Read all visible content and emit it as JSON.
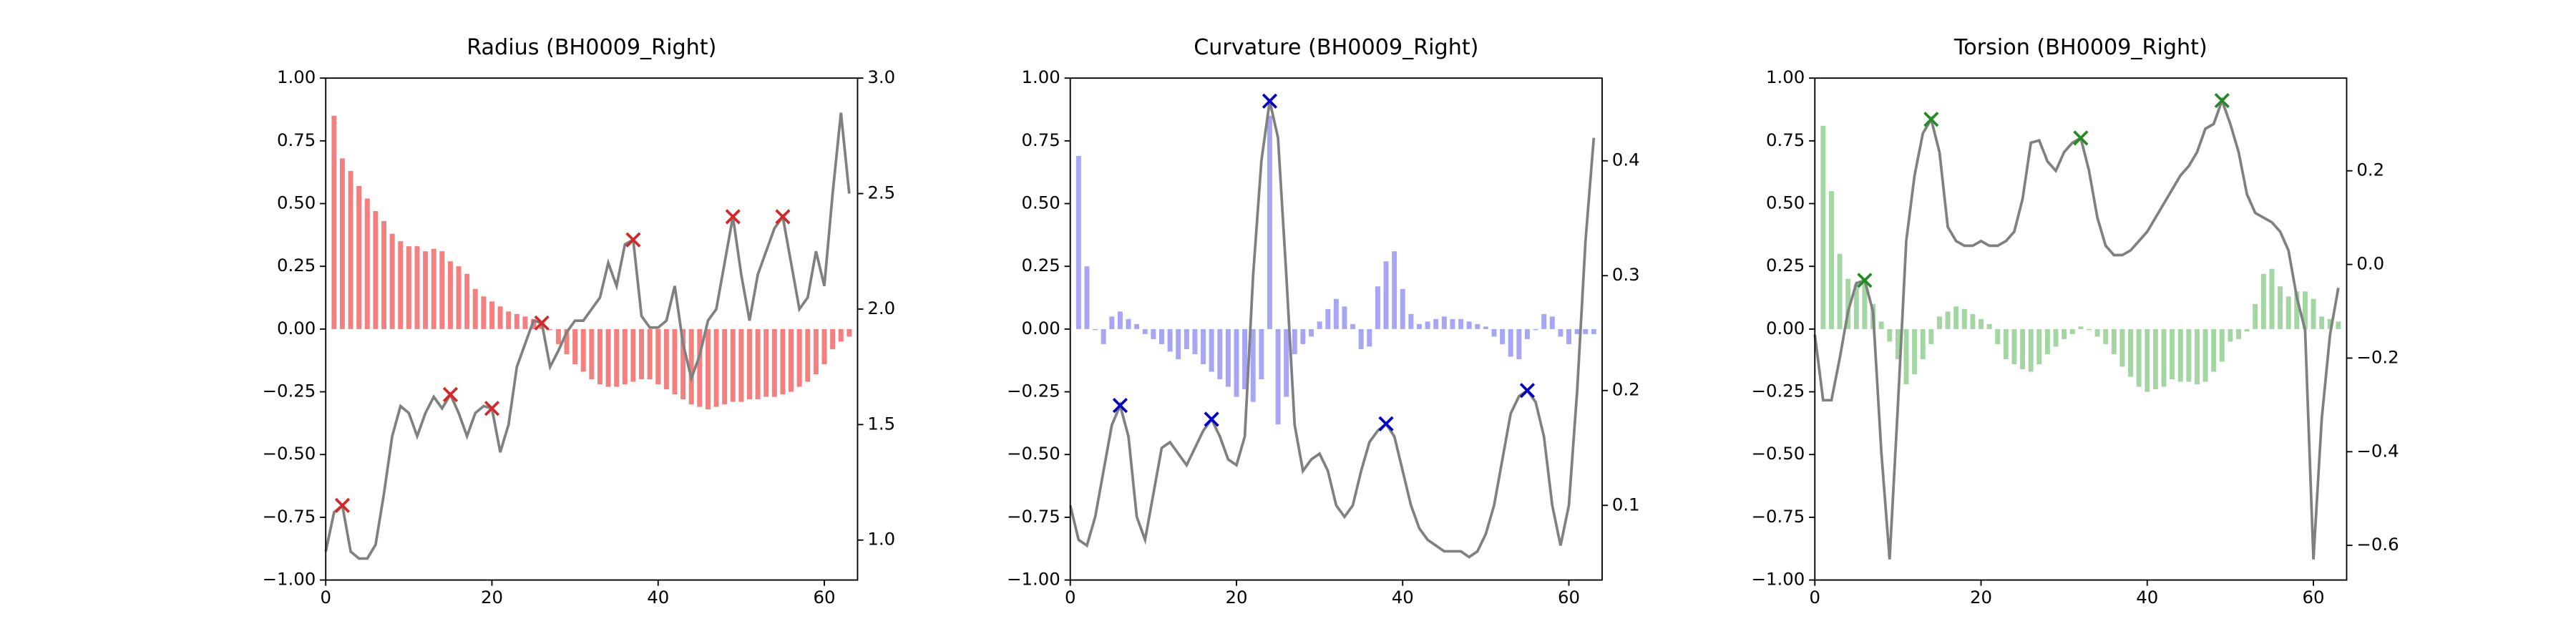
{
  "chart_data": [
    {
      "type": "combo",
      "title": "Radius (BH0009_Right)",
      "x": [
        0,
        1,
        2,
        3,
        4,
        5,
        6,
        7,
        8,
        9,
        10,
        11,
        12,
        13,
        14,
        15,
        16,
        17,
        18,
        19,
        20,
        21,
        22,
        23,
        24,
        25,
        26,
        27,
        28,
        29,
        30,
        31,
        32,
        33,
        34,
        35,
        36,
        37,
        38,
        39,
        40,
        41,
        42,
        43,
        44,
        45,
        46,
        47,
        48,
        49,
        50,
        51,
        52,
        53,
        54,
        55,
        56,
        57,
        58,
        59,
        60,
        61,
        62,
        63
      ],
      "series": [
        {
          "type": "bar",
          "color": "#f47f7f",
          "values": [
            null,
            0.85,
            0.68,
            0.63,
            0.57,
            0.52,
            0.47,
            0.43,
            0.38,
            0.35,
            0.33,
            0.33,
            0.31,
            0.32,
            0.31,
            0.27,
            0.25,
            0.22,
            0.16,
            0.13,
            0.11,
            0.09,
            0.07,
            0.06,
            0.05,
            0.04,
            0.02,
            0.0,
            -0.06,
            -0.1,
            -0.14,
            -0.17,
            -0.2,
            -0.22,
            -0.23,
            -0.23,
            -0.22,
            -0.21,
            -0.2,
            -0.2,
            -0.22,
            -0.24,
            -0.26,
            -0.28,
            -0.3,
            -0.31,
            -0.32,
            -0.31,
            -0.3,
            -0.29,
            -0.29,
            -0.28,
            -0.28,
            -0.27,
            -0.27,
            -0.26,
            -0.25,
            -0.23,
            -0.21,
            -0.18,
            -0.14,
            -0.08,
            -0.05,
            -0.03
          ]
        },
        {
          "type": "line",
          "axis": "y2",
          "color": "#808080",
          "values": [
            0.95,
            1.12,
            1.15,
            0.95,
            0.92,
            0.92,
            0.98,
            1.2,
            1.45,
            1.58,
            1.55,
            1.45,
            1.55,
            1.62,
            1.57,
            1.63,
            1.55,
            1.45,
            1.55,
            1.58,
            1.57,
            1.38,
            1.5,
            1.75,
            1.85,
            1.95,
            1.94,
            1.75,
            1.82,
            1.9,
            1.95,
            1.95,
            2.0,
            2.05,
            2.2,
            2.1,
            2.28,
            2.3,
            1.97,
            1.92,
            1.92,
            1.95,
            2.1,
            1.85,
            1.7,
            1.8,
            1.95,
            2.0,
            2.2,
            2.4,
            2.15,
            1.95,
            2.15,
            2.25,
            2.35,
            2.4,
            2.2,
            2.0,
            2.05,
            2.25,
            2.1,
            2.5,
            2.85,
            2.5
          ]
        }
      ],
      "peaks": {
        "x": [
          2,
          15,
          20,
          26,
          37,
          49,
          55
        ],
        "color": "#d62728"
      },
      "xlim": [
        0,
        64
      ],
      "xticks": [
        0,
        20,
        40,
        60
      ],
      "ylim": [
        -1,
        1
      ],
      "yticks": [
        {
          "value": -1,
          "label": "−1.00"
        },
        {
          "value": -0.75,
          "label": "−0.75"
        },
        {
          "value": -0.5,
          "label": "−0.50"
        },
        {
          "value": -0.25,
          "label": "−0.25"
        },
        {
          "value": 0,
          "label": "0.00"
        },
        {
          "value": 0.25,
          "label": "0.25"
        },
        {
          "value": 0.5,
          "label": "0.50"
        },
        {
          "value": 0.75,
          "label": "0.75"
        },
        {
          "value": 1,
          "label": "1.00"
        }
      ],
      "y2lim": [
        0.827,
        3.0
      ],
      "y2ticks": [
        {
          "value": 1,
          "label": "1.0"
        },
        {
          "value": 1.5,
          "label": "1.5"
        },
        {
          "value": 2,
          "label": "2.0"
        },
        {
          "value": 2.5,
          "label": "2.5"
        },
        {
          "value": 3,
          "label": "3.0"
        }
      ]
    },
    {
      "type": "combo",
      "title": "Curvature (BH0009_Right)",
      "x": [
        0,
        1,
        2,
        3,
        4,
        5,
        6,
        7,
        8,
        9,
        10,
        11,
        12,
        13,
        14,
        15,
        16,
        17,
        18,
        19,
        20,
        21,
        22,
        23,
        24,
        25,
        26,
        27,
        28,
        29,
        30,
        31,
        32,
        33,
        34,
        35,
        36,
        37,
        38,
        39,
        40,
        41,
        42,
        43,
        44,
        45,
        46,
        47,
        48,
        49,
        50,
        51,
        52,
        53,
        54,
        55,
        56,
        57,
        58,
        59,
        60,
        61,
        62,
        63
      ],
      "series": [
        {
          "type": "bar",
          "color": "#a6a6f4",
          "values": [
            null,
            0.69,
            0.25,
            0.0,
            -0.06,
            0.05,
            0.07,
            0.04,
            0.02,
            -0.02,
            -0.04,
            -0.06,
            -0.09,
            -0.12,
            -0.08,
            -0.1,
            -0.14,
            -0.17,
            -0.2,
            -0.23,
            -0.27,
            -0.24,
            -0.29,
            -0.2,
            0.85,
            -0.38,
            -0.27,
            -0.1,
            -0.06,
            -0.03,
            0.03,
            0.08,
            0.12,
            0.09,
            0.02,
            -0.08,
            -0.07,
            0.17,
            0.27,
            0.31,
            0.16,
            0.06,
            0.02,
            0.03,
            0.04,
            0.05,
            0.04,
            0.04,
            0.03,
            0.02,
            0.01,
            -0.03,
            -0.06,
            -0.11,
            -0.12,
            -0.04,
            0.0,
            0.06,
            0.05,
            -0.03,
            -0.06,
            -0.02,
            -0.02,
            -0.02
          ]
        },
        {
          "type": "line",
          "axis": "y2",
          "color": "#808080",
          "values": [
            0.1,
            0.07,
            0.065,
            0.09,
            0.13,
            0.17,
            0.187,
            0.16,
            0.09,
            0.07,
            0.11,
            0.15,
            0.155,
            0.145,
            0.135,
            0.15,
            0.165,
            0.175,
            0.16,
            0.14,
            0.135,
            0.16,
            0.3,
            0.4,
            0.452,
            0.42,
            0.3,
            0.17,
            0.13,
            0.14,
            0.145,
            0.13,
            0.1,
            0.09,
            0.1,
            0.13,
            0.155,
            0.165,
            0.171,
            0.16,
            0.13,
            0.1,
            0.08,
            0.07,
            0.065,
            0.06,
            0.06,
            0.06,
            0.055,
            0.06,
            0.075,
            0.1,
            0.14,
            0.18,
            0.195,
            0.2,
            0.19,
            0.16,
            0.1,
            0.065,
            0.1,
            0.2,
            0.33,
            0.42
          ]
        }
      ],
      "peaks": {
        "x": [
          6,
          17,
          24,
          38,
          55
        ],
        "color": "#0000cc"
      },
      "xlim": [
        0,
        64
      ],
      "xticks": [
        0,
        20,
        40,
        60
      ],
      "ylim": [
        -1,
        1
      ],
      "yticks": [
        {
          "value": -1,
          "label": "−1.00"
        },
        {
          "value": -0.75,
          "label": "−0.75"
        },
        {
          "value": -0.5,
          "label": "−0.50"
        },
        {
          "value": -0.25,
          "label": "−0.25"
        },
        {
          "value": 0,
          "label": "0.00"
        },
        {
          "value": 0.25,
          "label": "0.25"
        },
        {
          "value": 0.5,
          "label": "0.50"
        },
        {
          "value": 0.75,
          "label": "0.75"
        },
        {
          "value": 1,
          "label": "1.00"
        }
      ],
      "y2lim": [
        0.035,
        0.472
      ],
      "y2ticks": [
        0.1,
        0.2,
        0.3,
        0.4
      ]
    },
    {
      "type": "combo",
      "title": "Torsion (BH0009_Right)",
      "x": [
        0,
        1,
        2,
        3,
        4,
        5,
        6,
        7,
        8,
        9,
        10,
        11,
        12,
        13,
        14,
        15,
        16,
        17,
        18,
        19,
        20,
        21,
        22,
        23,
        24,
        25,
        26,
        27,
        28,
        29,
        30,
        31,
        32,
        33,
        34,
        35,
        36,
        37,
        38,
        39,
        40,
        41,
        42,
        43,
        44,
        45,
        46,
        47,
        48,
        49,
        50,
        51,
        52,
        53,
        54,
        55,
        56,
        57,
        58,
        59,
        60,
        61,
        62,
        63
      ],
      "series": [
        {
          "type": "bar",
          "color": "#a3d6a3",
          "values": [
            null,
            0.81,
            0.55,
            0.3,
            0.2,
            0.18,
            0.2,
            0.1,
            0.03,
            -0.05,
            -0.12,
            -0.22,
            -0.18,
            -0.12,
            -0.06,
            0.05,
            0.07,
            0.09,
            0.08,
            0.06,
            0.04,
            0.02,
            -0.06,
            -0.12,
            -0.14,
            -0.16,
            -0.17,
            -0.14,
            -0.1,
            -0.07,
            -0.04,
            -0.02,
            0.01,
            0.0,
            -0.03,
            -0.06,
            -0.1,
            -0.15,
            -0.19,
            -0.23,
            -0.25,
            -0.24,
            -0.23,
            -0.2,
            -0.21,
            -0.21,
            -0.22,
            -0.21,
            -0.17,
            -0.13,
            -0.05,
            -0.04,
            -0.01,
            0.1,
            0.22,
            0.24,
            0.17,
            0.13,
            0.15,
            0.15,
            0.12,
            0.05,
            0.04,
            0.03
          ]
        },
        {
          "type": "line",
          "axis": "y2",
          "color": "#808080",
          "values": [
            -0.15,
            -0.29,
            -0.29,
            -0.2,
            -0.1,
            -0.04,
            -0.034,
            -0.1,
            -0.4,
            -0.63,
            -0.3,
            0.05,
            0.19,
            0.28,
            0.31,
            0.24,
            0.08,
            0.05,
            0.04,
            0.04,
            0.05,
            0.04,
            0.04,
            0.05,
            0.07,
            0.14,
            0.26,
            0.265,
            0.22,
            0.2,
            0.24,
            0.26,
            0.27,
            0.2,
            0.1,
            0.04,
            0.02,
            0.02,
            0.03,
            0.05,
            0.07,
            0.1,
            0.13,
            0.16,
            0.19,
            0.21,
            0.24,
            0.29,
            0.3,
            0.35,
            0.3,
            0.24,
            0.15,
            0.11,
            0.1,
            0.09,
            0.07,
            0.03,
            -0.07,
            -0.14,
            -0.63,
            -0.33,
            -0.15,
            -0.05
          ]
        }
      ],
      "peaks": {
        "x": [
          6,
          14,
          32,
          49
        ],
        "color": "#228b22"
      },
      "xlim": [
        0,
        64
      ],
      "xticks": [
        0,
        20,
        40,
        60
      ],
      "ylim": [
        -1,
        1
      ],
      "yticks": [
        {
          "value": -1,
          "label": "−1.00"
        },
        {
          "value": -0.75,
          "label": "−0.75"
        },
        {
          "value": -0.5,
          "label": "−0.50"
        },
        {
          "value": -0.25,
          "label": "−0.25"
        },
        {
          "value": 0,
          "label": "0.00"
        },
        {
          "value": 0.25,
          "label": "0.25"
        },
        {
          "value": 0.5,
          "label": "0.50"
        },
        {
          "value": 0.75,
          "label": "0.75"
        },
        {
          "value": 1,
          "label": "1.00"
        }
      ],
      "y2lim": [
        -0.674,
        0.398
      ],
      "y2ticks": [
        {
          "value": -0.6,
          "label": "−0.6"
        },
        {
          "value": -0.4,
          "label": "−0.4"
        },
        {
          "value": -0.2,
          "label": "−0.2"
        },
        {
          "value": 0,
          "label": "0.0"
        },
        0.2
      ]
    }
  ]
}
